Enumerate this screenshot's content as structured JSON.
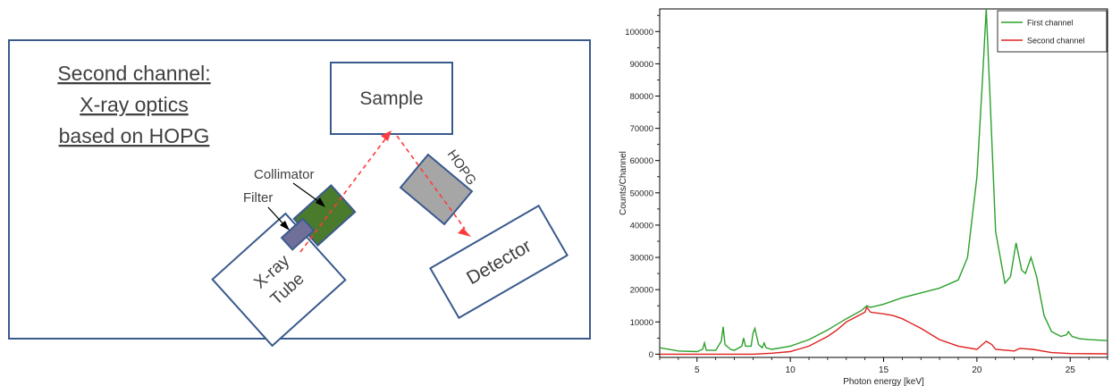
{
  "diagram": {
    "heading_lines": [
      "Second channel:",
      "X-ray optics ",
      "based on HOPG"
    ],
    "sample_label": "Sample",
    "hopg_label": "HOPG",
    "collimator_label": "Collimator",
    "filter_label": "Filter",
    "tube_lines": [
      "X-ray",
      "Tube"
    ],
    "detector_label": "Detector",
    "colors": {
      "frame": "#3a5a8c",
      "collimator": "#4a7a2c",
      "hopg": "#a6a6a6",
      "beam": "#ff3b3b"
    }
  },
  "chart_data": {
    "type": "line",
    "xlabel": "Photon energy [keV]",
    "ylabel": "Counts/Channel",
    "xlim": [
      3,
      27
    ],
    "ylim": [
      -1000,
      107000
    ],
    "x_ticks": [
      5,
      10,
      15,
      20,
      25
    ],
    "y_ticks": [
      0,
      10000,
      20000,
      30000,
      40000,
      50000,
      60000,
      70000,
      80000,
      90000,
      100000
    ],
    "legend_position": "top-right",
    "grid": false,
    "series": [
      {
        "name": "First channel",
        "color": "#2ca02c",
        "x": [
          3,
          4,
          5,
          5.3,
          5.4,
          5.5,
          6,
          6.3,
          6.4,
          6.5,
          6.8,
          7,
          7.4,
          7.5,
          7.6,
          7.9,
          8.0,
          8.1,
          8.3,
          8.5,
          8.6,
          8.7,
          9,
          10,
          11,
          12,
          13,
          13.8,
          14.1,
          14.3,
          15,
          16,
          17,
          18,
          19,
          19.5,
          20,
          20.3,
          20.5,
          20.7,
          21,
          21.5,
          21.8,
          22.1,
          22.4,
          22.6,
          22.9,
          23.2,
          23.6,
          24,
          24.5,
          24.8,
          24.9,
          25.1,
          25.5,
          26,
          27
        ],
        "y": [
          2000,
          1000,
          800,
          1500,
          3500,
          1200,
          1200,
          4000,
          8500,
          3000,
          1500,
          1200,
          2500,
          5000,
          2500,
          2500,
          6500,
          8000,
          3000,
          2000,
          3500,
          2000,
          1500,
          2500,
          4500,
          7500,
          11000,
          13500,
          15000,
          14500,
          15500,
          17500,
          19000,
          20500,
          23000,
          30000,
          55000,
          85000,
          107000,
          80000,
          38000,
          22000,
          24000,
          34500,
          26000,
          25000,
          30000,
          24000,
          12000,
          7000,
          5500,
          6000,
          7000,
          5500,
          4800,
          4500,
          4200
        ]
      },
      {
        "name": "Second channel",
        "color": "#e02020",
        "x": [
          3,
          8,
          9,
          10,
          11,
          12,
          12.5,
          13,
          13.5,
          14,
          14.1,
          14.3,
          15,
          15.5,
          16,
          17,
          18,
          19,
          20,
          20.3,
          20.5,
          20.8,
          21,
          22,
          22.3,
          23,
          23.5,
          24,
          25,
          27
        ],
        "y": [
          0,
          0,
          300,
          800,
          2500,
          5500,
          7500,
          10000,
          11500,
          13000,
          14500,
          13000,
          12500,
          12000,
          11000,
          8000,
          4500,
          2500,
          1500,
          3000,
          4000,
          3000,
          1500,
          1000,
          1800,
          1500,
          1000,
          500,
          200,
          100
        ]
      }
    ]
  }
}
